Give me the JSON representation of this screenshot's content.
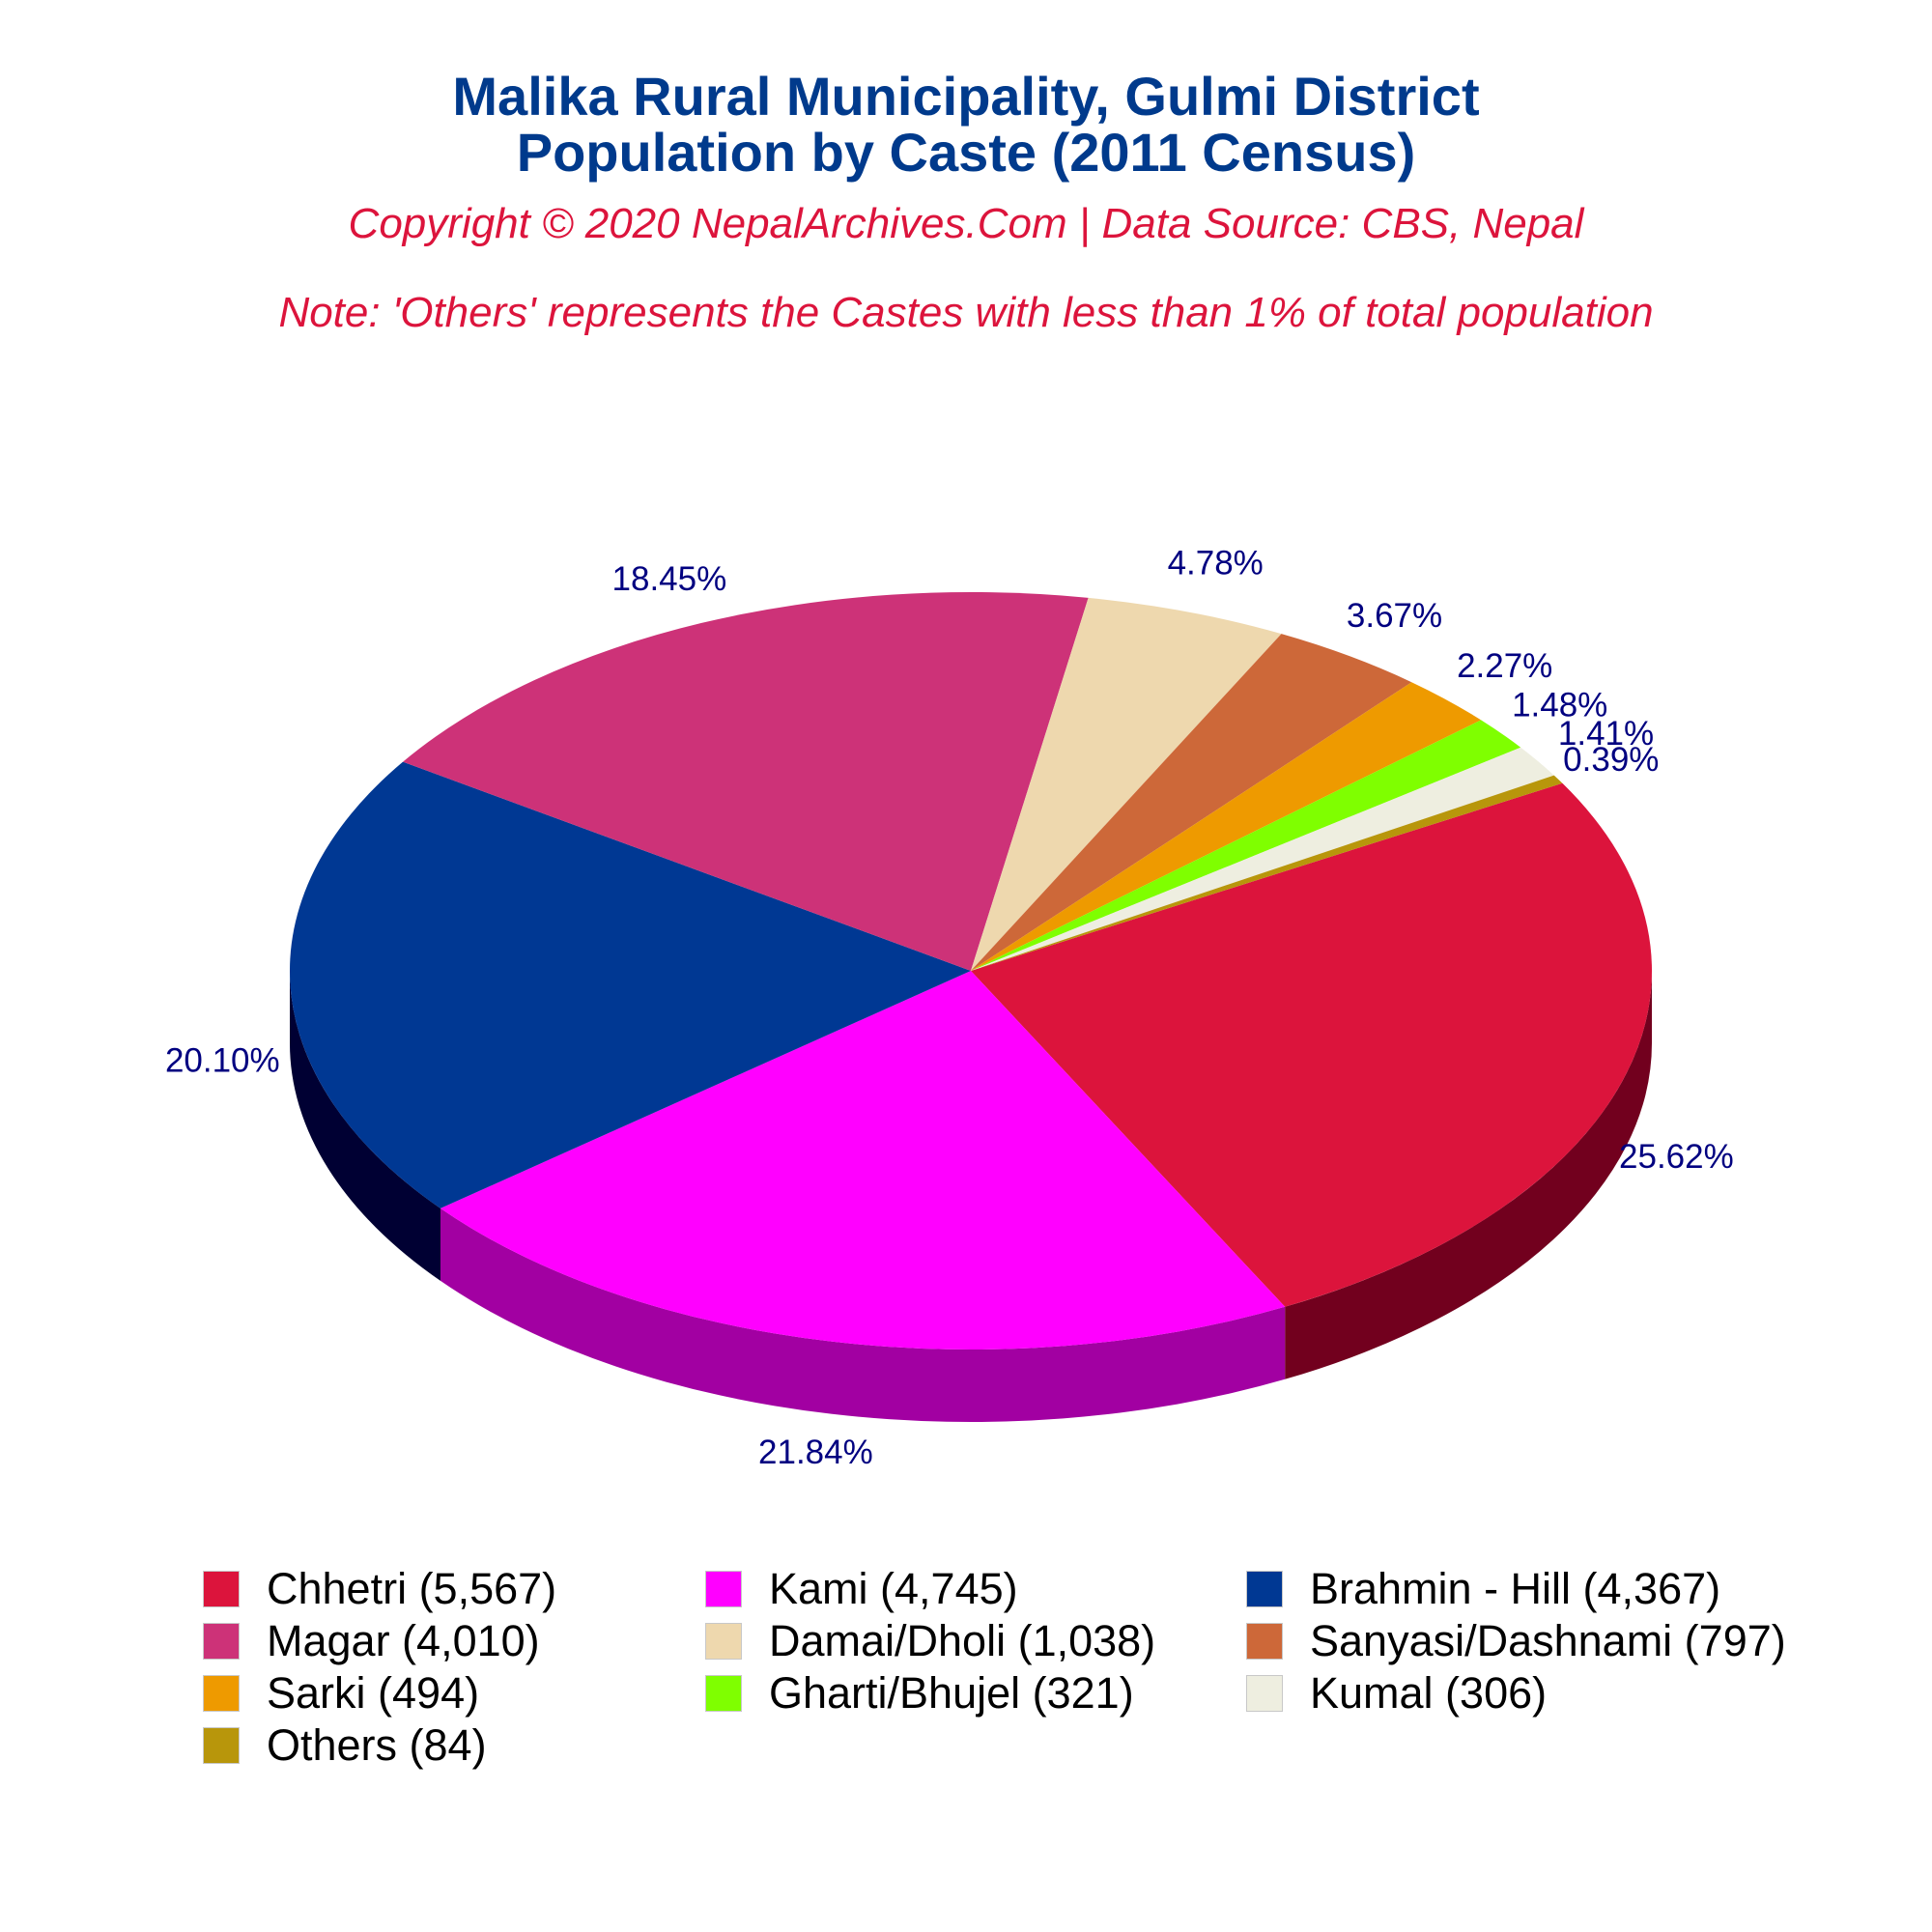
{
  "chart_data": {
    "type": "pie",
    "title": "Malika Rural Municipality, Gulmi District",
    "title_line2": "Population by Caste (2011 Census)",
    "subtitle": "Copyright © 2020 NepalArchives.Com | Data Source: CBS, Nepal",
    "note": "Note: 'Others' represents the Castes with less than 1% of total population",
    "three_d": true,
    "legend_placement": "bottom",
    "slices": [
      {
        "label": "Chhetri",
        "value": 5567,
        "percent_label": "25.62%",
        "legend_label": "Chhetri (5,567)",
        "color": "#dc143c",
        "side_color": "#72001e"
      },
      {
        "label": "Kami",
        "value": 4745,
        "percent_label": "21.84%",
        "legend_label": "Kami (4,745)",
        "color": "#ff00ff",
        "side_color": "#a200a2"
      },
      {
        "label": "Brahmin - Hill",
        "value": 4367,
        "percent_label": "20.10%",
        "legend_label": "Brahmin - Hill (4,367)",
        "color": "#003893",
        "side_color": "#000033"
      },
      {
        "label": "Magar",
        "value": 4010,
        "percent_label": "18.45%",
        "legend_label": "Magar (4,010)",
        "color": "#cd3278",
        "side_color": "#72001e"
      },
      {
        "label": "Damai/Dholi",
        "value": 1038,
        "percent_label": "4.78%",
        "legend_label": "Damai/Dholi (1,038)",
        "color": "#eed8ae",
        "side_color": "#9a8458"
      },
      {
        "label": "Sanyasi/Dashnami",
        "value": 797,
        "percent_label": "3.67%",
        "legend_label": "Sanyasi/Dashnami (797)",
        "color": "#cd6839",
        "side_color": "#7a3a18"
      },
      {
        "label": "Sarki",
        "value": 494,
        "percent_label": "2.27%",
        "legend_label": "Sarki (494)",
        "color": "#ee9a00",
        "side_color": "#8a5a00"
      },
      {
        "label": "Gharti/Bhujel",
        "value": 321,
        "percent_label": "1.48%",
        "legend_label": "Gharti/Bhujel (321)",
        "color": "#7fff00",
        "side_color": "#4a9a00"
      },
      {
        "label": "Kumal",
        "value": 306,
        "percent_label": "1.41%",
        "legend_label": "Kumal (306)",
        "color": "#eeeee0",
        "side_color": "#a0a090"
      },
      {
        "label": "Others",
        "value": 84,
        "percent_label": "0.39%",
        "legend_label": "Others (84)",
        "color": "#b8960b",
        "side_color": "#6e5a06"
      }
    ]
  }
}
